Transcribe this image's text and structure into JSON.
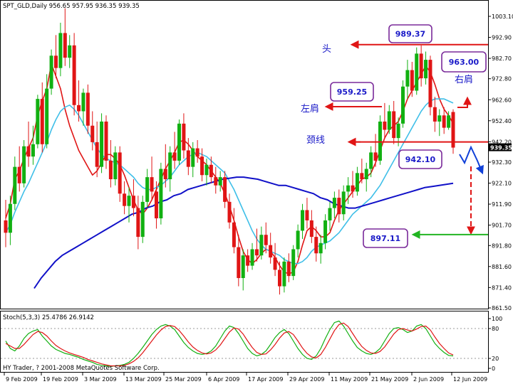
{
  "chart_data": {
    "type": "candlestick",
    "symbol_header": "SPT_GLD,Daily  956.65 957.95 936.35 939.35",
    "copyright": "HY Trader, ? 2001-2008 MetaQuotes Software Corp.",
    "last_price_label": "939.35",
    "price_ylim": [
      861.5,
      1010.0
    ],
    "price_ticks": [
      "1003.10",
      "992.90",
      "982.70",
      "972.80",
      "962.60",
      "952.40",
      "942.20",
      "932.30",
      "922.10",
      "911.90",
      "901.70",
      "891.80",
      "881.60",
      "871.40",
      "861.50"
    ],
    "x_tick_labels": [
      "9 Feb 2009",
      "19 Feb 2009",
      "3 Mar 2009",
      "13 Mar 2009",
      "25 Mar 2009",
      "6 Apr 2009",
      "17 Apr 2009",
      "29 Apr 2009",
      "11 May 2009",
      "21 May 2009",
      "2 Jun 2009",
      "12 Jun 2009"
    ],
    "candles": [
      {
        "o": 904.0,
        "h": 914.0,
        "l": 891.0,
        "c": 898.0
      },
      {
        "o": 898.0,
        "h": 916.0,
        "l": 892.0,
        "c": 912.0
      },
      {
        "o": 912.0,
        "h": 935.0,
        "l": 909.0,
        "c": 930.0
      },
      {
        "o": 930.0,
        "h": 940.0,
        "l": 918.0,
        "c": 922.0
      },
      {
        "o": 922.0,
        "h": 943.0,
        "l": 920.0,
        "c": 940.0
      },
      {
        "o": 940.0,
        "h": 952.0,
        "l": 930.0,
        "c": 935.0
      },
      {
        "o": 935.0,
        "h": 950.0,
        "l": 931.0,
        "c": 941.0
      },
      {
        "o": 941.0,
        "h": 965.0,
        "l": 939.0,
        "c": 963.0
      },
      {
        "o": 963.0,
        "h": 971.0,
        "l": 937.0,
        "c": 941.0
      },
      {
        "o": 941.0,
        "h": 975.0,
        "l": 939.0,
        "c": 968.0
      },
      {
        "o": 968.0,
        "h": 987.0,
        "l": 965.0,
        "c": 984.0
      },
      {
        "o": 984.0,
        "h": 994.0,
        "l": 973.0,
        "c": 978.0
      },
      {
        "o": 978.0,
        "h": 1000.0,
        "l": 974.0,
        "c": 995.0
      },
      {
        "o": 995.0,
        "h": 1007.0,
        "l": 979.0,
        "c": 983.0
      },
      {
        "o": 983.0,
        "h": 994.0,
        "l": 978.0,
        "c": 989.0
      },
      {
        "o": 989.0,
        "h": 995.0,
        "l": 955.0,
        "c": 960.0
      },
      {
        "o": 960.0,
        "h": 972.0,
        "l": 952.0,
        "c": 957.0
      },
      {
        "o": 957.0,
        "h": 968.0,
        "l": 950.0,
        "c": 966.0
      },
      {
        "o": 966.0,
        "h": 970.0,
        "l": 946.0,
        "c": 950.0
      },
      {
        "o": 950.0,
        "h": 957.0,
        "l": 938.0,
        "c": 942.0
      },
      {
        "o": 942.0,
        "h": 952.0,
        "l": 925.0,
        "c": 930.0
      },
      {
        "o": 930.0,
        "h": 956.0,
        "l": 927.0,
        "c": 952.0
      },
      {
        "o": 952.0,
        "h": 955.0,
        "l": 929.0,
        "c": 933.0
      },
      {
        "o": 933.0,
        "h": 943.0,
        "l": 920.0,
        "c": 924.0
      },
      {
        "o": 924.0,
        "h": 940.0,
        "l": 921.0,
        "c": 937.0
      },
      {
        "o": 937.0,
        "h": 940.0,
        "l": 913.0,
        "c": 917.0
      },
      {
        "o": 917.0,
        "h": 923.0,
        "l": 907.0,
        "c": 911.0
      },
      {
        "o": 911.0,
        "h": 920.0,
        "l": 903.0,
        "c": 916.0
      },
      {
        "o": 916.0,
        "h": 924.0,
        "l": 906.0,
        "c": 910.0
      },
      {
        "o": 910.0,
        "h": 916.0,
        "l": 890.0,
        "c": 896.0
      },
      {
        "o": 896.0,
        "h": 916.0,
        "l": 893.0,
        "c": 913.0
      },
      {
        "o": 913.0,
        "h": 929.0,
        "l": 910.0,
        "c": 925.0
      },
      {
        "o": 925.0,
        "h": 935.0,
        "l": 914.0,
        "c": 918.0
      },
      {
        "o": 918.0,
        "h": 923.0,
        "l": 900.0,
        "c": 905.0
      },
      {
        "o": 905.0,
        "h": 932.0,
        "l": 902.0,
        "c": 929.0
      },
      {
        "o": 929.0,
        "h": 941.0,
        "l": 920.0,
        "c": 924.0
      },
      {
        "o": 924.0,
        "h": 940.0,
        "l": 918.0,
        "c": 937.0
      },
      {
        "o": 937.0,
        "h": 947.0,
        "l": 929.0,
        "c": 933.0
      },
      {
        "o": 933.0,
        "h": 953.0,
        "l": 931.0,
        "c": 951.0
      },
      {
        "o": 951.0,
        "h": 956.0,
        "l": 934.0,
        "c": 938.0
      },
      {
        "o": 938.0,
        "h": 944.0,
        "l": 926.0,
        "c": 930.0
      },
      {
        "o": 930.0,
        "h": 942.0,
        "l": 925.0,
        "c": 939.0
      },
      {
        "o": 939.0,
        "h": 943.0,
        "l": 932.0,
        "c": 935.0
      },
      {
        "o": 935.0,
        "h": 939.0,
        "l": 923.0,
        "c": 926.0
      },
      {
        "o": 926.0,
        "h": 934.0,
        "l": 921.0,
        "c": 931.0
      },
      {
        "o": 931.0,
        "h": 935.0,
        "l": 922.0,
        "c": 925.0
      },
      {
        "o": 925.0,
        "h": 930.0,
        "l": 917.0,
        "c": 921.0
      },
      {
        "o": 921.0,
        "h": 928.0,
        "l": 918.0,
        "c": 925.0
      },
      {
        "o": 925.0,
        "h": 928.0,
        "l": 910.0,
        "c": 913.0
      },
      {
        "o": 913.0,
        "h": 917.0,
        "l": 900.0,
        "c": 903.0
      },
      {
        "o": 903.0,
        "h": 910.0,
        "l": 888.0,
        "c": 891.0
      },
      {
        "o": 891.0,
        "h": 897.0,
        "l": 872.0,
        "c": 876.0
      },
      {
        "o": 876.0,
        "h": 890.0,
        "l": 870.0,
        "c": 887.0
      },
      {
        "o": 887.0,
        "h": 890.0,
        "l": 879.0,
        "c": 882.0
      },
      {
        "o": 882.0,
        "h": 893.0,
        "l": 880.0,
        "c": 890.0
      },
      {
        "o": 890.0,
        "h": 900.0,
        "l": 884.0,
        "c": 887.0
      },
      {
        "o": 887.0,
        "h": 901.0,
        "l": 885.0,
        "c": 897.0
      },
      {
        "o": 897.0,
        "h": 903.0,
        "l": 888.0,
        "c": 892.0
      },
      {
        "o": 892.0,
        "h": 898.0,
        "l": 883.0,
        "c": 886.0
      },
      {
        "o": 886.0,
        "h": 893.0,
        "l": 877.0,
        "c": 880.0
      },
      {
        "o": 880.0,
        "h": 884.0,
        "l": 868.0,
        "c": 872.0
      },
      {
        "o": 872.0,
        "h": 886.0,
        "l": 869.0,
        "c": 884.0
      },
      {
        "o": 884.0,
        "h": 888.0,
        "l": 874.0,
        "c": 877.0
      },
      {
        "o": 877.0,
        "h": 892.0,
        "l": 875.0,
        "c": 890.0
      },
      {
        "o": 890.0,
        "h": 902.0,
        "l": 886.0,
        "c": 899.0
      },
      {
        "o": 899.0,
        "h": 912.0,
        "l": 895.0,
        "c": 909.0
      },
      {
        "o": 909.0,
        "h": 915.0,
        "l": 900.0,
        "c": 904.0
      },
      {
        "o": 904.0,
        "h": 909.0,
        "l": 893.0,
        "c": 896.0
      },
      {
        "o": 896.0,
        "h": 901.0,
        "l": 884.0,
        "c": 888.0
      },
      {
        "o": 888.0,
        "h": 897.0,
        "l": 883.0,
        "c": 893.0
      },
      {
        "o": 893.0,
        "h": 907.0,
        "l": 890.0,
        "c": 904.0
      },
      {
        "o": 904.0,
        "h": 913.0,
        "l": 899.0,
        "c": 910.0
      },
      {
        "o": 910.0,
        "h": 918.0,
        "l": 905.0,
        "c": 915.0
      },
      {
        "o": 915.0,
        "h": 919.0,
        "l": 903.0,
        "c": 907.0
      },
      {
        "o": 907.0,
        "h": 921.0,
        "l": 904.0,
        "c": 918.0
      },
      {
        "o": 918.0,
        "h": 925.0,
        "l": 912.0,
        "c": 921.0
      },
      {
        "o": 921.0,
        "h": 928.0,
        "l": 915.0,
        "c": 918.0
      },
      {
        "o": 918.0,
        "h": 930.0,
        "l": 916.0,
        "c": 927.0
      },
      {
        "o": 927.0,
        "h": 934.0,
        "l": 922.0,
        "c": 924.0
      },
      {
        "o": 924.0,
        "h": 932.0,
        "l": 918.0,
        "c": 929.0
      },
      {
        "o": 929.0,
        "h": 940.0,
        "l": 925.0,
        "c": 937.0
      },
      {
        "o": 937.0,
        "h": 946.0,
        "l": 930.0,
        "c": 933.0
      },
      {
        "o": 933.0,
        "h": 955.0,
        "l": 931.0,
        "c": 952.0
      },
      {
        "o": 952.0,
        "h": 961.0,
        "l": 944.0,
        "c": 948.0
      },
      {
        "o": 948.0,
        "h": 960.0,
        "l": 946.0,
        "c": 957.0
      },
      {
        "o": 957.0,
        "h": 962.0,
        "l": 941.0,
        "c": 944.0
      },
      {
        "o": 944.0,
        "h": 954.0,
        "l": 940.0,
        "c": 951.0
      },
      {
        "o": 951.0,
        "h": 972.0,
        "l": 949.0,
        "c": 969.0
      },
      {
        "o": 969.0,
        "h": 982.0,
        "l": 963.0,
        "c": 977.0
      },
      {
        "o": 977.0,
        "h": 981.0,
        "l": 964.0,
        "c": 967.0
      },
      {
        "o": 967.0,
        "h": 988.0,
        "l": 965.0,
        "c": 985.0
      },
      {
        "o": 985.0,
        "h": 989.0,
        "l": 969.0,
        "c": 973.0
      },
      {
        "o": 973.0,
        "h": 986.0,
        "l": 970.0,
        "c": 982.0
      },
      {
        "o": 982.0,
        "h": 984.0,
        "l": 955.0,
        "c": 959.0
      },
      {
        "o": 959.0,
        "h": 964.0,
        "l": 947.0,
        "c": 952.0
      },
      {
        "o": 952.0,
        "h": 958.0,
        "l": 945.0,
        "c": 955.0
      },
      {
        "o": 955.0,
        "h": 959.0,
        "l": 946.0,
        "c": 949.0
      },
      {
        "o": 949.0,
        "h": 957.0,
        "l": 948.0,
        "c": 955.0
      },
      {
        "o": 956.65,
        "h": 957.95,
        "l": 936.35,
        "c": 939.35
      }
    ],
    "series": [
      {
        "values": [
          905.0,
          912.0,
          924.0,
          928.0,
          934.0,
          939.0,
          944.0,
          955.0,
          962.0,
          968.0,
          980.0,
          974.0,
          968.0,
          958.0,
          950.0,
          944.0,
          938.0,
          934.0,
          930.0,
          926.0,
          928.0,
          932.0,
          936.0,
          936.0,
          934.0,
          931.0,
          926.0,
          920.0,
          914.0,
          909.0,
          907.0,
          910.0,
          914.0,
          919.0,
          924.0,
          929.0,
          933.0,
          937.0,
          942.0,
          943.0,
          941.0,
          938.0,
          935.0,
          933.0,
          931.0,
          928.0,
          925.0,
          922.0,
          917.0,
          911.0,
          904.0,
          896.0,
          889.0,
          885.0,
          883.0,
          885.0,
          888.0,
          890.0,
          889.0,
          886.0,
          882.0,
          879.0,
          878.0,
          879.0,
          884.0,
          892.0,
          899.0,
          901.0,
          899.0,
          896.0,
          896.0,
          898.0,
          904.0,
          909.0,
          912.0,
          915.0,
          918.0,
          921.0,
          924.0,
          925.0,
          927.0,
          932.0,
          938.0,
          944.0,
          948.0,
          950.0,
          952.0,
          957.0,
          963.0,
          967.0,
          971.0,
          975.0,
          979.0,
          976.0,
          970.0,
          963.0,
          958.0,
          955.0,
          951.0
        ]
      },
      {
        "values": [
          898.0,
          902.0,
          908.0,
          913.0,
          918.0,
          922.0,
          927.0,
          932.0,
          937.0,
          942.0,
          948.0,
          953.0,
          957.0,
          959.0,
          960.0,
          958.0,
          955.0,
          951.0,
          947.0,
          943.0,
          939.0,
          936.0,
          934.0,
          933.0,
          932.0,
          931.0,
          929.0,
          927.0,
          925.0,
          922.0,
          920.0,
          919.0,
          919.0,
          920.0,
          921.0,
          923.0,
          925.0,
          928.0,
          931.0,
          933.0,
          935.0,
          936.0,
          937.0,
          936.0,
          935.0,
          933.0,
          931.0,
          929.0,
          927.0,
          923.0,
          919.0,
          914.0,
          909.0,
          904.0,
          899.0,
          895.0,
          892.0,
          890.0,
          889.0,
          888.0,
          887.0,
          885.0,
          884.0,
          883.0,
          883.0,
          884.0,
          886.0,
          889.0,
          891.0,
          892.0,
          893.0,
          894.0,
          896.0,
          898.0,
          901.0,
          904.0,
          907.0,
          909.0,
          911.0,
          913.0,
          915.0,
          918.0,
          921.0,
          925.0,
          929.0,
          933.0,
          937.0,
          941.0,
          945.0,
          949.0,
          953.0,
          957.0,
          960.0,
          962.0,
          963.0,
          963.0,
          963.0,
          962.0,
          961.0
        ]
      },
      {
        "values": [
          871.0,
          876.0,
          880.0,
          884.0,
          887.0,
          889.0,
          891.0,
          893.0,
          895.0,
          897.0,
          899.0,
          901.0,
          903.0,
          905.0,
          907.0,
          908.0,
          910.0,
          911.0,
          913.0,
          914.0,
          916.0,
          917.0,
          919.0,
          920.0,
          921.0,
          922.0,
          923.0,
          924.0,
          924.5,
          925.0,
          925.0,
          924.5,
          924.0,
          923.0,
          922.0,
          921.0,
          921.0,
          920.0,
          919.0,
          918.0,
          917.0,
          915.0,
          914.0,
          912.0,
          911.0,
          910.0,
          910.0,
          911.0,
          912.0,
          913.0,
          914.0,
          915.0,
          916.0,
          917.0,
          918.0,
          919.0,
          920.0,
          920.5,
          921.0,
          921.5,
          922.0
        ]
      }
    ],
    "stochastic": {
      "label": "Stoch(5,3,3) 25.4786 26.9142",
      "ylim": [
        0,
        100
      ],
      "ticks": [
        "100",
        "80",
        "20",
        "0"
      ],
      "main": [
        55,
        40,
        35,
        45,
        60,
        70,
        75,
        78,
        65,
        55,
        45,
        38,
        34,
        30,
        28,
        25,
        22,
        18,
        15,
        12,
        8,
        6,
        5,
        4,
        5,
        6,
        8,
        12,
        20,
        30,
        42,
        55,
        68,
        78,
        85,
        88,
        85,
        78,
        65,
        52,
        42,
        35,
        30,
        28,
        30,
        35,
        45,
        60,
        75,
        85,
        82,
        70,
        55,
        40,
        30,
        25,
        28,
        35,
        48,
        62,
        72,
        78,
        70,
        55,
        40,
        28,
        20,
        18,
        25,
        40,
        60,
        78,
        92,
        95,
        85,
        70,
        55,
        42,
        35,
        30,
        28,
        32,
        40,
        55,
        70,
        80,
        82,
        78,
        72,
        75,
        85,
        88,
        80,
        65,
        50,
        40,
        32,
        26,
        25
      ],
      "signal": [
        50,
        45,
        40,
        40,
        48,
        58,
        68,
        74,
        72,
        65,
        55,
        46,
        40,
        35,
        31,
        28,
        25,
        22,
        18,
        15,
        12,
        9,
        7,
        5,
        5,
        5,
        6,
        9,
        14,
        21,
        31,
        43,
        55,
        67,
        77,
        84,
        86,
        84,
        76,
        65,
        53,
        43,
        36,
        31,
        29,
        31,
        37,
        47,
        60,
        73,
        81,
        79,
        69,
        55,
        42,
        32,
        28,
        29,
        37,
        48,
        61,
        71,
        74,
        68,
        55,
        41,
        30,
        23,
        21,
        28,
        42,
        59,
        76,
        88,
        91,
        84,
        70,
        56,
        44,
        36,
        31,
        30,
        34,
        43,
        56,
        69,
        78,
        80,
        77,
        75,
        79,
        84,
        85,
        77,
        63,
        50,
        40,
        31,
        27
      ]
    },
    "annotations": {
      "head_label": "头",
      "left_shoulder_label": "左肩",
      "right_shoulder_label": "右肩",
      "neckline_label": "颈线",
      "head_value": "989.37",
      "left_shoulder_value": "959.25",
      "right_shoulder_value": "963.00",
      "neckline_value": "942.10",
      "target_value": "897.11",
      "head_price": 989.37,
      "left_shoulder_price": 959.25,
      "right_shoulder_price": 963.0,
      "neckline_price": 942.1,
      "target_price": 897.11
    },
    "colors": {
      "bull": "#11b011",
      "bear": "#e01515",
      "ma_fast": "#e01515",
      "ma_mid": "#3fbfe8",
      "ma_slow": "#1010c8",
      "stoch_main": "#11b011",
      "stoch_signal": "#e01515",
      "annotation_text": "#1a1ac8",
      "annotation_box": "#7a2a9a",
      "arrow_red": "#e01515",
      "arrow_green": "#22b522",
      "arrow_blue": "#1040d8"
    }
  }
}
